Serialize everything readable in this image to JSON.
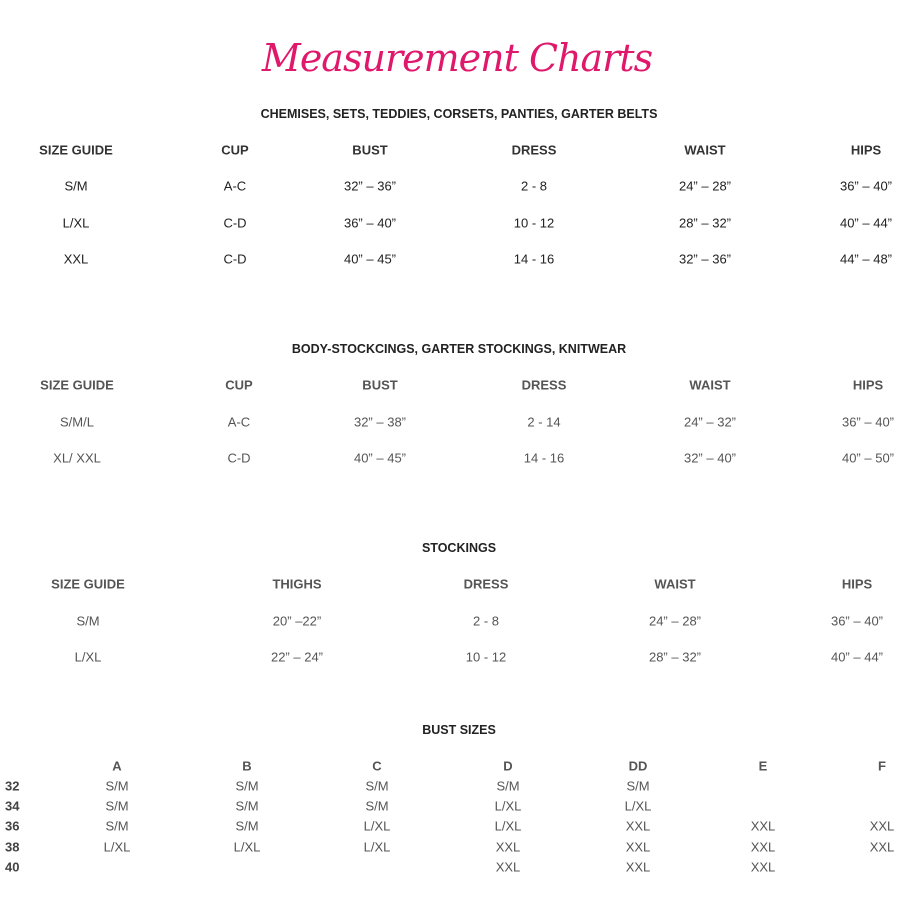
{
  "logo": {
    "text": "Measurement Charts",
    "color": "#e0186c"
  },
  "sections": [
    {
      "title": "CHEMISES, SETS, TEDDIES, CORSETS, PANTIES, GARTER BELTS",
      "headers": [
        "SIZE GUIDE",
        "CUP",
        "BUST",
        "DRESS",
        "WAIST",
        "HIPS"
      ],
      "rows": [
        [
          "S/M",
          "A-C",
          "32” – 36”",
          "2 - 8",
          "24” – 28”",
          "36” – 40”"
        ],
        [
          "L/XL",
          "C-D",
          "36” – 40”",
          "10 - 12",
          "28” – 32”",
          "40” – 44”"
        ],
        [
          "XXL",
          "C-D",
          "40” – 45”",
          "14 - 16",
          "32” – 36”",
          "44” – 48”"
        ]
      ]
    },
    {
      "title": "BODY-STOCKCINGS, GARTER STOCKINGS, KNITWEAR",
      "headers": [
        "SIZE GUIDE",
        "CUP",
        "BUST",
        "DRESS",
        "WAIST",
        "HIPS"
      ],
      "rows": [
        [
          "S/M/L",
          "A-C",
          "32” – 38”",
          "2 - 14",
          "24” – 32”",
          "36” – 40”"
        ],
        [
          "XL/ XXL",
          "C-D",
          "40” – 45”",
          "14 - 16",
          "32” – 40”",
          "40” – 50”"
        ]
      ]
    },
    {
      "title": "STOCKINGS",
      "headers": [
        "SIZE GUIDE",
        "THIGHS",
        "DRESS",
        "WAIST",
        "HIPS"
      ],
      "rows": [
        [
          "S/M",
          "20” –22”",
          "2 - 8",
          "24” – 28”",
          "36” – 40”"
        ],
        [
          "L/XL",
          "22” – 24”",
          "10 - 12",
          "28” – 32”",
          "40” – 44”"
        ]
      ]
    }
  ],
  "bust": {
    "title": "BUST SIZES",
    "headers": [
      "A",
      "B",
      "C",
      "D",
      "DD",
      "E",
      "F"
    ],
    "row_labels": [
      "32",
      "34",
      "36",
      "38",
      "40"
    ],
    "rows": [
      [
        "S/M",
        "S/M",
        "S/M",
        "S/M",
        "S/M",
        "",
        ""
      ],
      [
        "S/M",
        "S/M",
        "S/M",
        "L/XL",
        "L/XL",
        "",
        ""
      ],
      [
        "S/M",
        "S/M",
        "L/XL",
        "L/XL",
        "XXL",
        "XXL",
        "XXL"
      ],
      [
        "L/XL",
        "L/XL",
        "L/XL",
        "XXL",
        "XXL",
        "XXL",
        "XXL"
      ],
      [
        "",
        "",
        "",
        "XXL",
        "XXL",
        "XXL",
        ""
      ]
    ]
  }
}
